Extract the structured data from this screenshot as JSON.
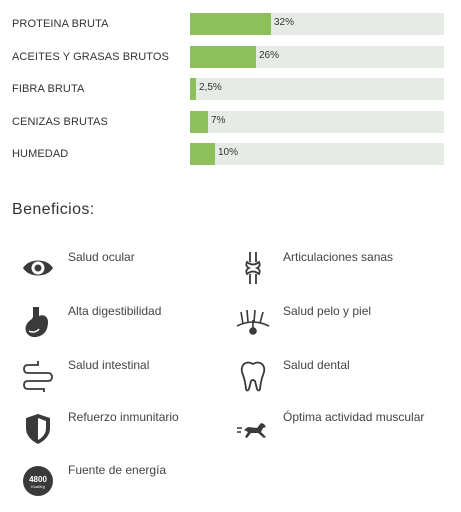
{
  "nutrients": [
    {
      "label": "PROTEINA BRUTA",
      "value_text": "32%",
      "value": 32
    },
    {
      "label": "ACEITES Y GRASAS BRUTOS",
      "value_text": "26%",
      "value": 26
    },
    {
      "label": "FIBRA BRUTA",
      "value_text": "2,5%",
      "value": 2.5
    },
    {
      "label": "CENIZAS BRUTAS",
      "value_text": "7%",
      "value": 7
    },
    {
      "label": "HUMEDAD",
      "value_text": "10%",
      "value": 10
    }
  ],
  "bar_scale_max": 100,
  "colors": {
    "bar_fill": "#8dc05a",
    "bar_track": "#e6ebe6",
    "icon": "#3a3a3a"
  },
  "benefits_title": "Beneficios:",
  "benefits": [
    {
      "label": "Salud ocular",
      "icon": "eye-icon"
    },
    {
      "label": "Articulaciones sanas",
      "icon": "joint-icon"
    },
    {
      "label": "Alta digestibilidad",
      "icon": "stomach-icon"
    },
    {
      "label": "Salud pelo y piel",
      "icon": "hair-skin-icon"
    },
    {
      "label": "Salud intestinal",
      "icon": "intestine-icon"
    },
    {
      "label": "Salud dental",
      "icon": "tooth-icon"
    },
    {
      "label": "Refuerzo inmunitario",
      "icon": "shield-icon"
    },
    {
      "label": "Óptima actividad muscular",
      "icon": "running-dog-icon"
    },
    {
      "label": "Fuente de energía",
      "icon": "energy-badge-icon"
    }
  ],
  "energy_badge": {
    "number": "4800",
    "unit": "Kcal/Kg"
  }
}
